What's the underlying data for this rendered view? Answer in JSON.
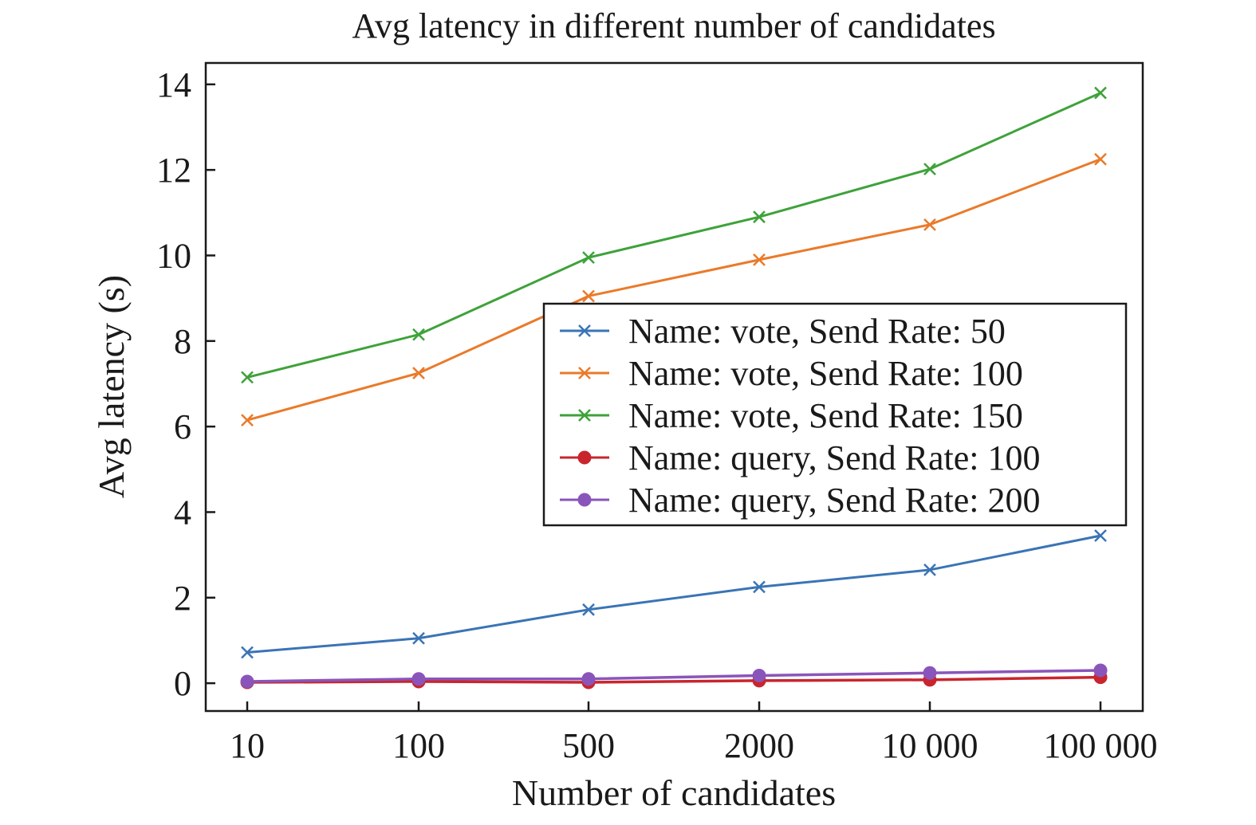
{
  "chart_data": {
    "type": "line",
    "title": "Avg latency in different number of candidates",
    "xlabel": "Number of candidates",
    "ylabel": "Avg latency (s)",
    "categories": [
      "10",
      "100",
      "500",
      "2000",
      "10 000",
      "100 000"
    ],
    "yticks": [
      "0",
      "2",
      "4",
      "6",
      "8",
      "10",
      "12",
      "14"
    ],
    "ylim": [
      -0.65,
      14.5
    ],
    "grid": false,
    "legend_position": "center-right",
    "series": [
      {
        "name": "Name: vote, Send Rate: 50",
        "marker": "x",
        "color": "#3a74b5",
        "values": [
          0.72,
          1.05,
          1.72,
          2.25,
          2.65,
          3.45
        ]
      },
      {
        "name": "Name: vote, Send Rate: 100",
        "marker": "x",
        "color": "#ea7a2a",
        "values": [
          6.15,
          7.25,
          9.05,
          9.9,
          10.72,
          12.25
        ]
      },
      {
        "name": "Name: vote, Send Rate: 150",
        "marker": "x",
        "color": "#3ea23a",
        "values": [
          7.15,
          8.15,
          9.95,
          10.9,
          12.02,
          13.8
        ]
      },
      {
        "name": "Name: query, Send Rate: 100",
        "marker": "circle",
        "color": "#c9252e",
        "values": [
          0.02,
          0.04,
          0.02,
          0.06,
          0.08,
          0.14
        ]
      },
      {
        "name": "Name: query, Send Rate: 200",
        "marker": "circle",
        "color": "#8a55ba",
        "values": [
          0.04,
          0.1,
          0.1,
          0.18,
          0.24,
          0.3
        ]
      }
    ]
  }
}
